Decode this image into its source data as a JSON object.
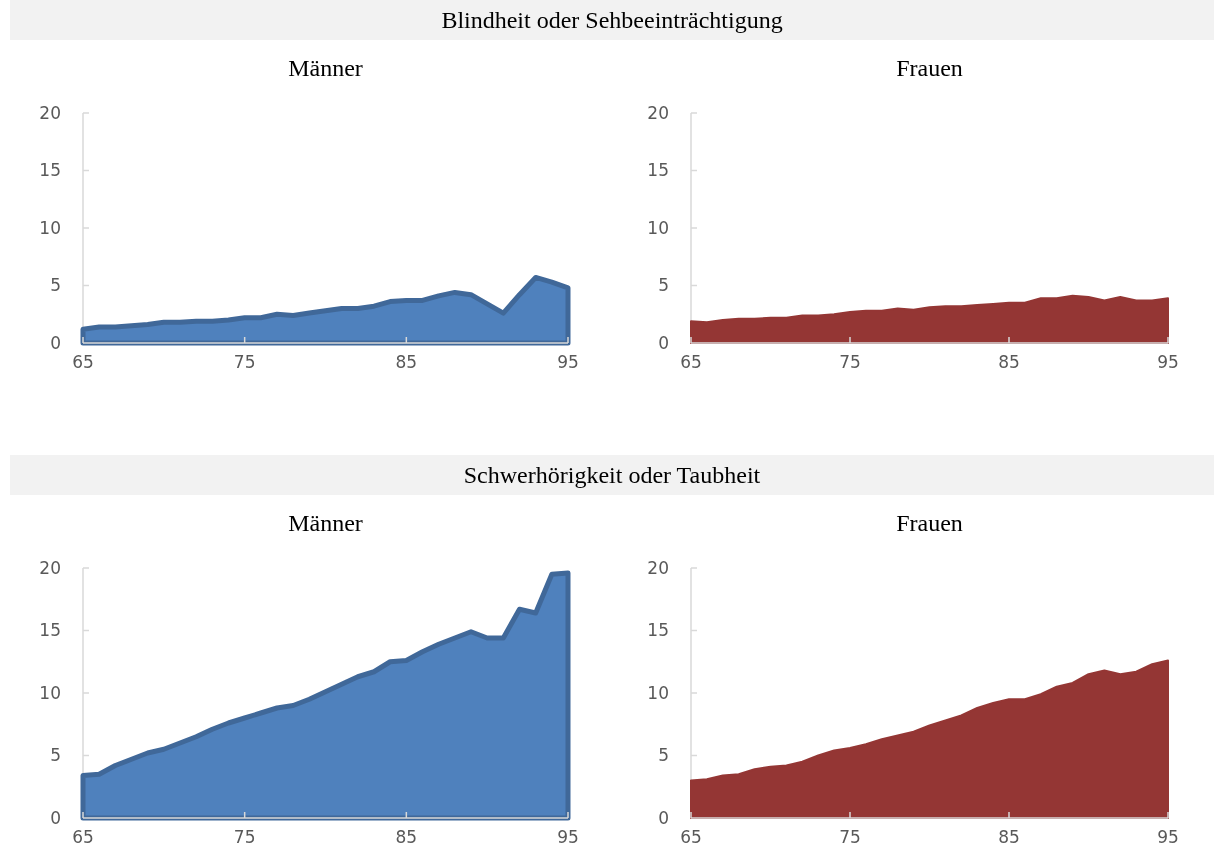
{
  "chart_data": [
    {
      "type": "other",
      "title": "Blindheit oder Sehbeeinträchtigung"
    },
    {
      "type": "area",
      "title": "Männer",
      "x": [
        65,
        66,
        67,
        68,
        69,
        70,
        71,
        72,
        73,
        74,
        75,
        76,
        77,
        78,
        79,
        80,
        81,
        82,
        83,
        84,
        85,
        86,
        87,
        88,
        89,
        90,
        91,
        92,
        93,
        94,
        95
      ],
      "xlim": [
        65,
        95
      ],
      "xticks": [
        65,
        75,
        85,
        95
      ],
      "ylim": [
        0,
        20
      ],
      "yticks": [
        0,
        5,
        10,
        15,
        20
      ],
      "series": [
        {
          "color": "#4f81bd",
          "values": [
            1.2,
            1.4,
            1.4,
            1.5,
            1.6,
            1.8,
            1.8,
            1.9,
            1.9,
            2.0,
            2.2,
            2.2,
            2.5,
            2.4,
            2.6,
            2.8,
            3.0,
            3.0,
            3.2,
            3.6,
            3.7,
            3.7,
            4.1,
            4.4,
            4.2,
            3.4,
            2.6,
            4.2,
            5.7,
            5.3,
            4.8
          ]
        }
      ]
    },
    {
      "type": "area",
      "title": "Frauen",
      "x": [
        65,
        66,
        67,
        68,
        69,
        70,
        71,
        72,
        73,
        74,
        75,
        76,
        77,
        78,
        79,
        80,
        81,
        82,
        83,
        84,
        85,
        86,
        87,
        88,
        89,
        90,
        91,
        92,
        93,
        94,
        95
      ],
      "xlim": [
        65,
        95
      ],
      "xticks": [
        65,
        75,
        85,
        95
      ],
      "ylim": [
        0,
        20
      ],
      "yticks": [
        0,
        5,
        10,
        15,
        20
      ],
      "series": [
        {
          "color": "#943634",
          "values": [
            1.9,
            1.8,
            2.0,
            2.1,
            2.1,
            2.2,
            2.2,
            2.4,
            2.4,
            2.5,
            2.7,
            2.8,
            2.8,
            3.0,
            2.9,
            3.1,
            3.2,
            3.2,
            3.3,
            3.4,
            3.5,
            3.5,
            3.9,
            3.9,
            4.1,
            4.0,
            3.7,
            4.0,
            3.7,
            3.7,
            3.9
          ]
        }
      ]
    },
    {
      "type": "other",
      "title": "Schwerhörigkeit oder Taubheit"
    },
    {
      "type": "area",
      "title": "Männer",
      "x": [
        65,
        66,
        67,
        68,
        69,
        70,
        71,
        72,
        73,
        74,
        75,
        76,
        77,
        78,
        79,
        80,
        81,
        82,
        83,
        84,
        85,
        86,
        87,
        88,
        89,
        90,
        91,
        92,
        93,
        94,
        95
      ],
      "xlim": [
        65,
        95
      ],
      "xticks": [
        65,
        75,
        85,
        95
      ],
      "ylim": [
        0,
        20
      ],
      "yticks": [
        0,
        5,
        10,
        15,
        20
      ],
      "series": [
        {
          "color": "#4f81bd",
          "values": [
            3.4,
            3.5,
            4.2,
            4.7,
            5.2,
            5.5,
            6.0,
            6.5,
            7.1,
            7.6,
            8.0,
            8.4,
            8.8,
            9.0,
            9.5,
            10.1,
            10.7,
            11.3,
            11.7,
            12.5,
            12.6,
            13.3,
            13.9,
            14.4,
            14.9,
            14.4,
            14.4,
            16.7,
            16.4,
            19.5,
            19.6
          ]
        }
      ]
    },
    {
      "type": "area",
      "title": "Frauen",
      "x": [
        65,
        66,
        67,
        68,
        69,
        70,
        71,
        72,
        73,
        74,
        75,
        76,
        77,
        78,
        79,
        80,
        81,
        82,
        83,
        84,
        85,
        86,
        87,
        88,
        89,
        90,
        91,
        92,
        93,
        94,
        95
      ],
      "xlim": [
        65,
        95
      ],
      "xticks": [
        65,
        75,
        85,
        95
      ],
      "ylim": [
        0,
        20
      ],
      "yticks": [
        0,
        5,
        10,
        15,
        20
      ],
      "series": [
        {
          "color": "#943634",
          "values": [
            3.0,
            3.1,
            3.4,
            3.5,
            3.9,
            4.1,
            4.2,
            4.5,
            5.0,
            5.4,
            5.6,
            5.9,
            6.3,
            6.6,
            6.9,
            7.4,
            7.8,
            8.2,
            8.8,
            9.2,
            9.5,
            9.5,
            9.9,
            10.5,
            10.8,
            11.5,
            11.8,
            11.5,
            11.7,
            12.3,
            12.6
          ]
        }
      ]
    }
  ]
}
